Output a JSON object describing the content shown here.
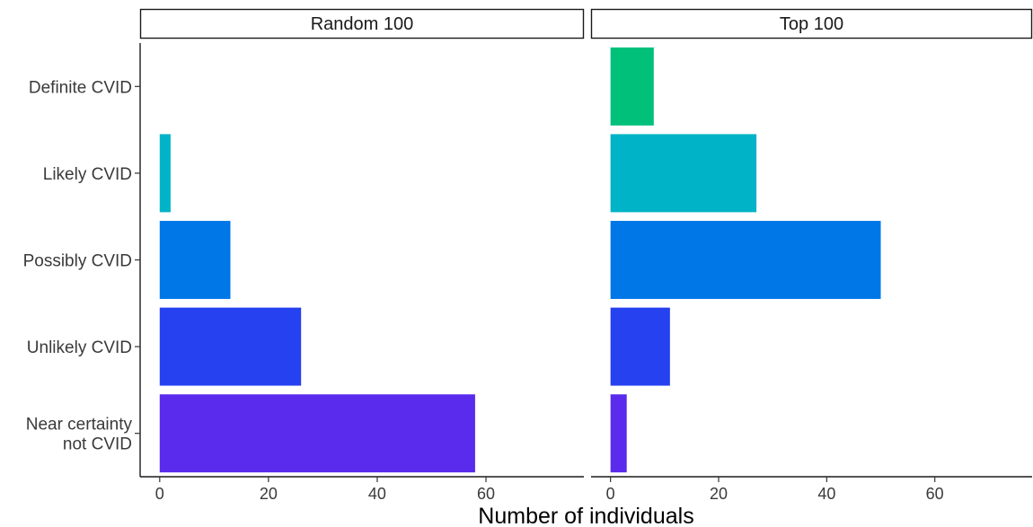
{
  "chart_data": {
    "type": "bar",
    "orientation": "horizontal",
    "facets": [
      "Random 100",
      "Top 100"
    ],
    "categories": [
      "Definite CVID",
      "Likely CVID",
      "Possibly CVID",
      "Unlikely CVID",
      "Near certainty not CVID"
    ],
    "category_display": [
      [
        "Definite CVID"
      ],
      [
        "Likely CVID"
      ],
      [
        "Possibly CVID"
      ],
      [
        "Unlikely CVID"
      ],
      [
        "Near certainty",
        "not CVID"
      ]
    ],
    "category_colors": [
      "#00c07a",
      "#00b3c6",
      "#0077e6",
      "#2541f0",
      "#5a2bec"
    ],
    "series": [
      {
        "name": "Random 100",
        "values": [
          0,
          2,
          13,
          26,
          58
        ]
      },
      {
        "name": "Top 100",
        "values": [
          8,
          27,
          50,
          11,
          3
        ]
      }
    ],
    "xlabel": "Number of individuals",
    "ylabel": "",
    "xlim": [
      -3.6,
      78
    ],
    "xticks": [
      0,
      20,
      40,
      60
    ],
    "grid": false,
    "legend": "none"
  }
}
